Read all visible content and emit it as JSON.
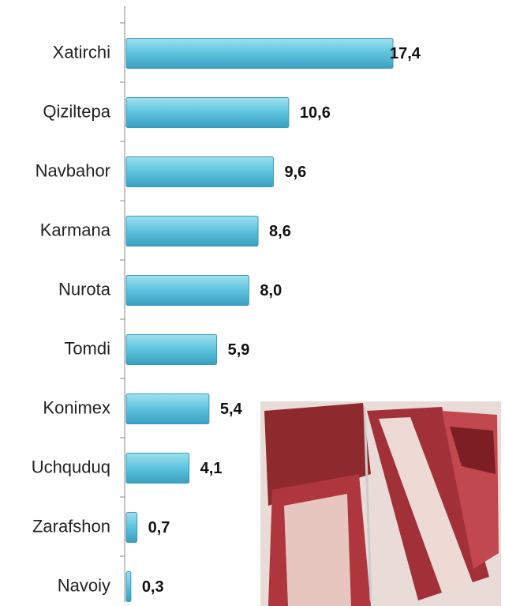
{
  "chart_data": {
    "type": "bar",
    "orientation": "horizontal",
    "categories": [
      "Xatirchi",
      "Qiziltepa",
      "Navbahor",
      "Karmana",
      "Nurota",
      "Tomdi",
      "Konimex",
      "Uchquduq",
      "Zarafshon",
      "Navoiy"
    ],
    "values": [
      17.4,
      10.6,
      9.6,
      8.6,
      8.0,
      5.9,
      5.4,
      4.1,
      0.7,
      0.3
    ],
    "value_labels": [
      "17,4",
      "10,6",
      "9,6",
      "8,6",
      "8,0",
      "5,9",
      "5,4",
      "4,1",
      "0,7",
      "0,3"
    ],
    "color": "#5cc3de"
  }
}
